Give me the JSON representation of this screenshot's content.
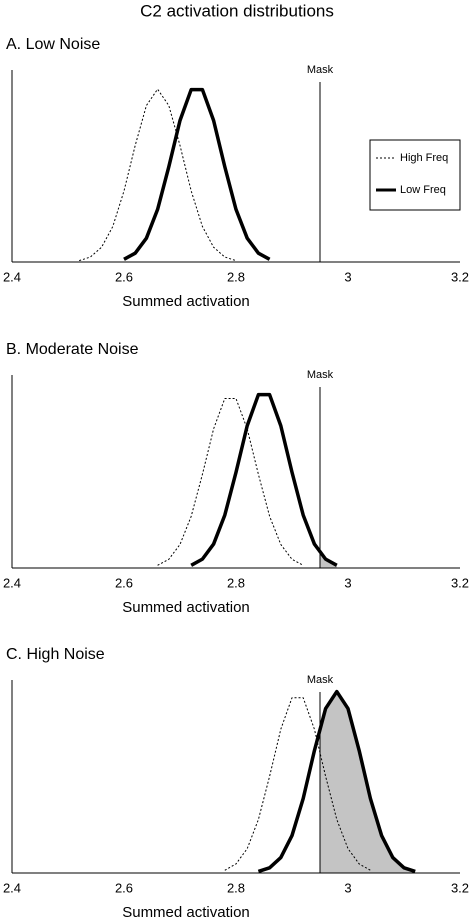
{
  "title": "C2  activation distributions",
  "chart_data": [
    {
      "type": "line",
      "title": "A. Low Noise",
      "xlabel": "Summed activation",
      "xlim": [
        2.4,
        3.2
      ],
      "xticks": [
        2.4,
        2.6,
        2.8,
        3,
        3.2
      ],
      "ylim": [
        0,
        1
      ],
      "mask": {
        "value": 2.95,
        "label": "Mask"
      },
      "legend": "right",
      "x": [
        2.52,
        2.54,
        2.56,
        2.58,
        2.6,
        2.62,
        2.64,
        2.66,
        2.68,
        2.7,
        2.72,
        2.74,
        2.76,
        2.78,
        2.8,
        2.82,
        2.84,
        2.86
      ],
      "series": [
        {
          "name": "High Freq",
          "color": "#000000",
          "style": "dotted",
          "width": 1,
          "values": [
            0.007,
            0.026,
            0.077,
            0.185,
            0.37,
            0.607,
            0.815,
            0.9,
            0.815,
            0.607,
            0.37,
            0.185,
            0.077,
            0.026,
            0.007,
            null,
            null,
            null
          ]
        },
        {
          "name": "Low Freq",
          "color": "#000000",
          "style": "solid",
          "width": 3.5,
          "shade_beyond_mask": true,
          "shade_color": "#c4c4c4",
          "values": [
            null,
            null,
            null,
            null,
            0.014,
            0.046,
            0.124,
            0.274,
            0.496,
            0.737,
            0.898,
            0.898,
            0.737,
            0.496,
            0.274,
            0.124,
            0.046,
            0.014
          ]
        }
      ]
    },
    {
      "type": "line",
      "title": "B. Moderate Noise",
      "xlabel": "Summed activation",
      "xlim": [
        2.4,
        3.2
      ],
      "xticks": [
        2.4,
        2.6,
        2.8,
        3,
        3.2
      ],
      "ylim": [
        0,
        1
      ],
      "mask": {
        "value": 2.95,
        "label": "Mask"
      },
      "x": [
        2.66,
        2.68,
        2.7,
        2.72,
        2.74,
        2.76,
        2.78,
        2.8,
        2.82,
        2.84,
        2.86,
        2.88,
        2.9,
        2.92,
        2.94,
        2.96,
        2.98
      ],
      "series": [
        {
          "name": "High Freq",
          "color": "#000000",
          "style": "dotted",
          "width": 1,
          "values": [
            0.014,
            0.045,
            0.122,
            0.268,
            0.485,
            0.721,
            0.878,
            0.878,
            0.721,
            0.485,
            0.268,
            0.122,
            0.045,
            0.014,
            null,
            null,
            null
          ]
        },
        {
          "name": "Low Freq",
          "color": "#000000",
          "style": "solid",
          "width": 3.5,
          "shade_beyond_mask": true,
          "shade_color": "#c4c4c4",
          "values": [
            null,
            null,
            null,
            0.014,
            0.046,
            0.124,
            0.274,
            0.496,
            0.737,
            0.898,
            0.898,
            0.737,
            0.496,
            0.274,
            0.124,
            0.046,
            0.014
          ]
        }
      ]
    },
    {
      "type": "line",
      "title": "C. High Noise",
      "xlabel": "Summed activation",
      "xlim": [
        2.4,
        3.2
      ],
      "xticks": [
        2.4,
        2.6,
        2.8,
        3,
        3.2
      ],
      "ylim": [
        0,
        1
      ],
      "mask": {
        "value": 2.95,
        "label": "Mask"
      },
      "x": [
        2.78,
        2.8,
        2.82,
        2.84,
        2.86,
        2.88,
        2.9,
        2.92,
        2.94,
        2.96,
        2.98,
        3.0,
        3.02,
        3.04,
        3.06,
        3.08,
        3.1,
        3.12
      ],
      "series": [
        {
          "name": "High Freq",
          "color": "#000000",
          "style": "dotted",
          "width": 1,
          "values": [
            0.014,
            0.047,
            0.126,
            0.277,
            0.501,
            0.745,
            0.908,
            0.908,
            0.745,
            0.501,
            0.277,
            0.126,
            0.047,
            0.014,
            null,
            null,
            null,
            null
          ]
        },
        {
          "name": "Low Freq",
          "color": "#000000",
          "style": "solid",
          "width": 3.5,
          "shade_beyond_mask": true,
          "shade_color": "#c4c4c4",
          "values": [
            null,
            null,
            null,
            0.008,
            0.027,
            0.08,
            0.194,
            0.386,
            0.634,
            0.852,
            0.94,
            0.852,
            0.634,
            0.386,
            0.194,
            0.08,
            0.027,
            0.008
          ]
        }
      ]
    }
  ]
}
